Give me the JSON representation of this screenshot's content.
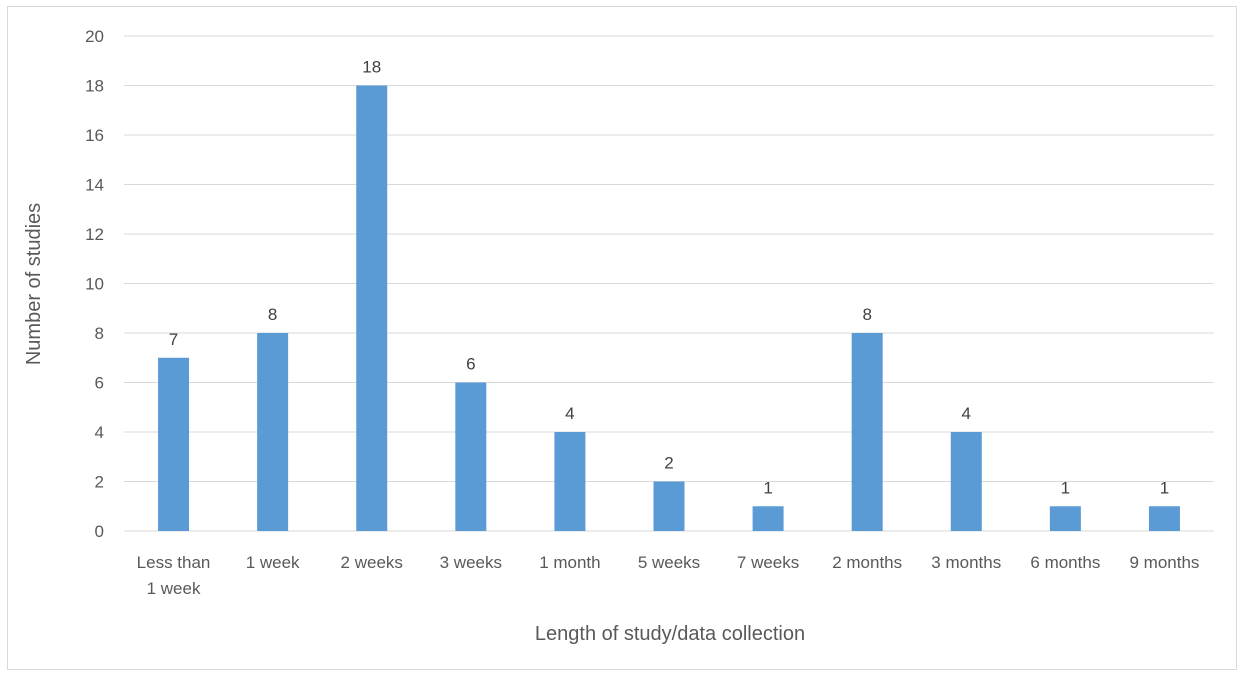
{
  "chart_data": {
    "type": "bar",
    "categories": [
      [
        "Less than",
        "1 week"
      ],
      [
        "1 week"
      ],
      [
        "2 weeks"
      ],
      [
        "3 weeks"
      ],
      [
        "1 month"
      ],
      [
        "5 weeks"
      ],
      [
        "7 weeks"
      ],
      [
        "2 months"
      ],
      [
        "3 months"
      ],
      [
        "6 months"
      ],
      [
        "9 months"
      ]
    ],
    "values": [
      7,
      8,
      18,
      6,
      4,
      2,
      1,
      8,
      4,
      1,
      1
    ],
    "data_labels": [
      "7",
      "8",
      "18",
      "6",
      "4",
      "2",
      "1",
      "8",
      "4",
      "1",
      "1"
    ],
    "xlabel": "Length of study/data collection",
    "ylabel": "Number of studies",
    "ylim": [
      0,
      20
    ],
    "yticks": [
      0,
      2,
      4,
      6,
      8,
      10,
      12,
      14,
      16,
      18,
      20
    ],
    "grid": true,
    "colors": {
      "bar": "#5b9bd5",
      "grid": "#d9d9d9"
    }
  }
}
